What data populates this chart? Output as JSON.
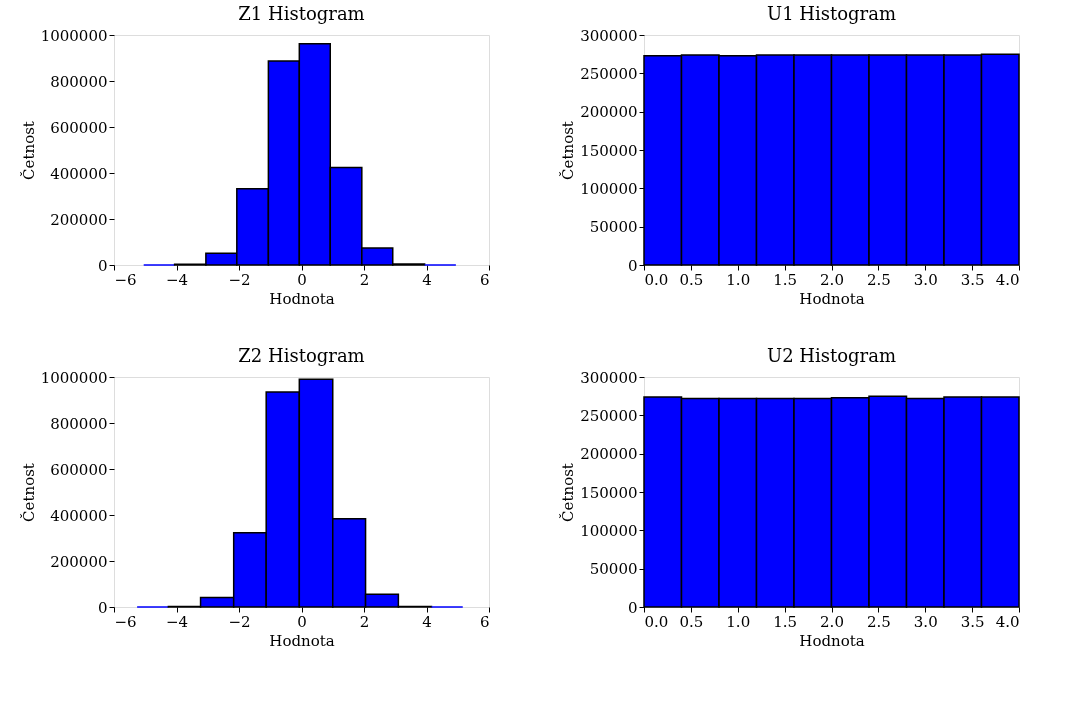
{
  "chart_data": [
    {
      "type": "histogram",
      "title": "Z1 Histogram",
      "xlabel": "Hodnota",
      "ylabel": "Četnost",
      "color": "#0000ff",
      "bins": [
        -5.05,
        -4.06,
        -3.06,
        -2.07,
        -1.06,
        -0.07,
        0.92,
        1.93,
        2.92,
        3.94,
        4.94
      ],
      "values": [
        0,
        3000,
        51000,
        331000,
        887000,
        962000,
        424000,
        74000,
        4000,
        0
      ],
      "xlim": [
        -6,
        6
      ],
      "xticks": [
        {
          "value": -6,
          "label": "−6"
        },
        {
          "value": -4,
          "label": "−4"
        },
        {
          "value": -2,
          "label": "−2"
        },
        0,
        2,
        4,
        6
      ],
      "ylim": [
        0,
        1000000
      ],
      "yticks": [
        0,
        200000,
        400000,
        600000,
        800000,
        1000000
      ]
    },
    {
      "type": "histogram",
      "title": "U1 Histogram",
      "xlabel": "Hodnota",
      "ylabel": "Četnost",
      "color": "#0000ff",
      "bins": [
        0.0,
        0.4,
        0.8,
        1.2,
        1.6,
        2.0,
        2.4,
        2.8,
        3.2,
        3.6,
        4.0
      ],
      "values": [
        273000,
        274000,
        273000,
        274000,
        274000,
        274000,
        274000,
        274000,
        274000,
        275000
      ],
      "xlim": [
        0,
        4
      ],
      "xticks": [
        {
          "value": 0,
          "label": "0.0"
        },
        0.5,
        {
          "value": 1,
          "label": "1.0"
        },
        1.5,
        {
          "value": 2,
          "label": "2.0"
        },
        2.5,
        {
          "value": 3,
          "label": "3.0"
        },
        3.5,
        {
          "value": 4,
          "label": "4.0"
        }
      ],
      "ylim": [
        0,
        300000
      ],
      "yticks": [
        0,
        50000,
        100000,
        150000,
        200000,
        250000,
        300000
      ]
    },
    {
      "type": "histogram",
      "title": "Z2 Histogram",
      "xlabel": "Hodnota",
      "ylabel": "Četnost",
      "color": "#0000ff",
      "bins": [
        -5.26,
        -4.26,
        -3.23,
        -2.17,
        -1.13,
        -0.07,
        1.0,
        2.05,
        3.1,
        4.16,
        5.16
      ],
      "values": [
        0,
        2000,
        41000,
        323000,
        935000,
        990000,
        384000,
        55000,
        2000,
        0
      ],
      "xlim": [
        -6,
        6
      ],
      "xticks": [
        {
          "value": -6,
          "label": "−6"
        },
        {
          "value": -4,
          "label": "−4"
        },
        {
          "value": -2,
          "label": "−2"
        },
        0,
        2,
        4,
        6
      ],
      "ylim": [
        0,
        1000000
      ],
      "yticks": [
        0,
        200000,
        400000,
        600000,
        800000,
        1000000
      ]
    },
    {
      "type": "histogram",
      "title": "U2 Histogram",
      "xlabel": "Hodnota",
      "ylabel": "Četnost",
      "color": "#0000ff",
      "bins": [
        0.0,
        0.4,
        0.8,
        1.2,
        1.6,
        2.0,
        2.4,
        2.8,
        3.2,
        3.6,
        4.0
      ],
      "values": [
        274000,
        272000,
        272000,
        272000,
        272000,
        273000,
        275000,
        272000,
        274000,
        274000
      ],
      "xlim": [
        0,
        4
      ],
      "xticks": [
        {
          "value": 0,
          "label": "0.0"
        },
        0.5,
        {
          "value": 1,
          "label": "1.0"
        },
        1.5,
        {
          "value": 2,
          "label": "2.0"
        },
        2.5,
        {
          "value": 3,
          "label": "3.0"
        },
        3.5,
        {
          "value": 4,
          "label": "4.0"
        }
      ],
      "ylim": [
        0,
        300000
      ],
      "yticks": [
        0,
        50000,
        100000,
        150000,
        200000,
        250000,
        300000
      ]
    }
  ]
}
